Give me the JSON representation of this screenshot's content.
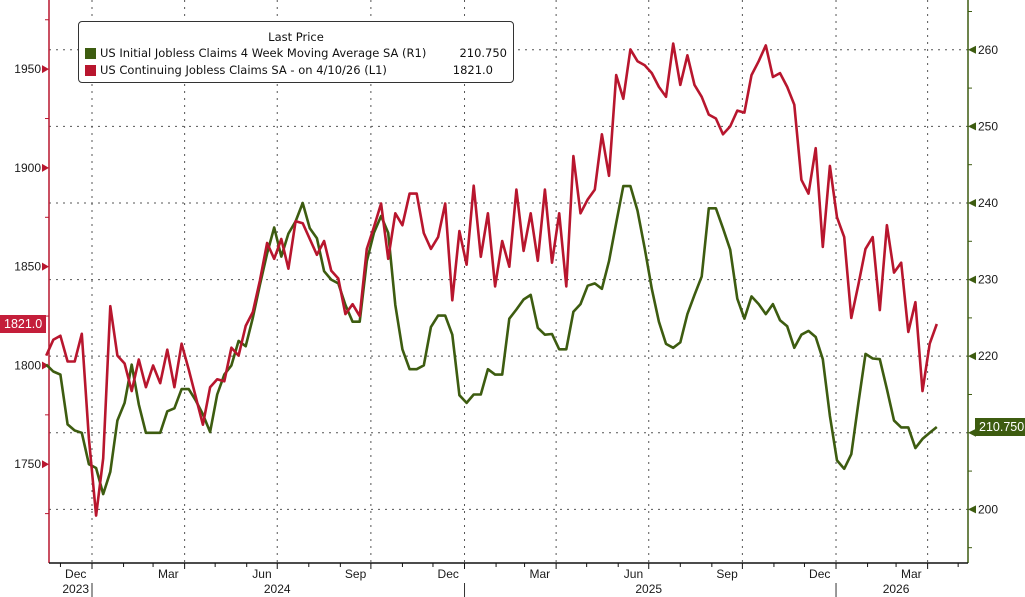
{
  "chart_data": {
    "type": "line",
    "legend": {
      "header": "Last Price",
      "placement": "top-left",
      "entries": [
        {
          "label": "US Initial Jobless Claims 4 Week Moving Average SA  (R1)",
          "value": "210.750",
          "color": "#3d5c10",
          "axis": "right"
        },
        {
          "label": "US Continuing Jobless Claims SA -  on 4/10/26  (L1)",
          "value": "1821.0",
          "color": "#b8162e",
          "axis": "left"
        }
      ]
    },
    "left_axis": {
      "ticks": [
        1750,
        1800,
        1850,
        1900,
        1950
      ],
      "ylim": [
        1700,
        1985
      ],
      "last_value_badge": "1821.0",
      "color": "#b8162e"
    },
    "right_axis": {
      "ticks": [
        200,
        210,
        220,
        230,
        240,
        250,
        260
      ],
      "ylim": [
        193,
        266.5
      ],
      "last_value_badge": "210.750",
      "color": "#3d5c10"
    },
    "grid": true,
    "x_axis": {
      "xlim": [
        "2023-11-15",
        "2026-05-08"
      ],
      "month_labels": [
        {
          "label": "Dec",
          "date": "2023-12-16"
        },
        {
          "label": "Mar",
          "date": "2024-03-16"
        },
        {
          "label": "Jun",
          "date": "2024-06-16"
        },
        {
          "label": "Sep",
          "date": "2024-09-16"
        },
        {
          "label": "Dec",
          "date": "2024-12-16"
        },
        {
          "label": "Mar",
          "date": "2025-03-16"
        },
        {
          "label": "Jun",
          "date": "2025-06-16"
        },
        {
          "label": "Sep",
          "date": "2025-09-16"
        },
        {
          "label": "Dec",
          "date": "2025-12-16"
        },
        {
          "label": "Mar",
          "date": "2026-03-16"
        }
      ],
      "year_labels": [
        {
          "label": "2023",
          "date": "2023-12-16"
        },
        {
          "label": "2024",
          "date": "2024-07-01"
        },
        {
          "label": "2025",
          "date": "2025-07-01"
        },
        {
          "label": "2026",
          "date": "2026-03-01"
        }
      ]
    },
    "dates": [
      "2023-11-17",
      "2023-11-24",
      "2023-12-01",
      "2023-12-08",
      "2023-12-15",
      "2023-12-22",
      "2023-12-29",
      "2024-01-05",
      "2024-01-12",
      "2024-01-19",
      "2024-01-26",
      "2024-02-02",
      "2024-02-09",
      "2024-02-16",
      "2024-02-23",
      "2024-03-01",
      "2024-03-08",
      "2024-03-15",
      "2024-03-22",
      "2024-03-29",
      "2024-04-05",
      "2024-04-12",
      "2024-04-19",
      "2024-04-26",
      "2024-05-03",
      "2024-05-10",
      "2024-05-17",
      "2024-05-24",
      "2024-05-31",
      "2024-06-07",
      "2024-06-14",
      "2024-06-21",
      "2024-06-28",
      "2024-07-05",
      "2024-07-12",
      "2024-07-19",
      "2024-07-26",
      "2024-08-02",
      "2024-08-09",
      "2024-08-16",
      "2024-08-23",
      "2024-08-30",
      "2024-09-06",
      "2024-09-13",
      "2024-09-20",
      "2024-09-27",
      "2024-10-04",
      "2024-10-11",
      "2024-10-18",
      "2024-10-25",
      "2024-11-01",
      "2024-11-08",
      "2024-11-15",
      "2024-11-22",
      "2024-11-29",
      "2024-12-06",
      "2024-12-13",
      "2024-12-20",
      "2024-12-27",
      "2025-01-03",
      "2025-01-10",
      "2025-01-17",
      "2025-01-24",
      "2025-01-31",
      "2025-02-07",
      "2025-02-14",
      "2025-02-21",
      "2025-02-28",
      "2025-03-07",
      "2025-03-14",
      "2025-03-21",
      "2025-03-28",
      "2025-04-04",
      "2025-04-11",
      "2025-04-18",
      "2025-04-25",
      "2025-05-02",
      "2025-05-09",
      "2025-05-16",
      "2025-05-23",
      "2025-05-30",
      "2025-06-06",
      "2025-06-13",
      "2025-06-20",
      "2025-06-27",
      "2025-07-04",
      "2025-07-11",
      "2025-07-18",
      "2025-07-25",
      "2025-08-01",
      "2025-08-08",
      "2025-08-15",
      "2025-08-22",
      "2025-08-29",
      "2025-09-05",
      "2025-09-12",
      "2025-09-19",
      "2025-09-26",
      "2025-10-03",
      "2025-10-10",
      "2025-10-17",
      "2025-10-24",
      "2025-10-31",
      "2025-11-07",
      "2025-11-14",
      "2025-11-21",
      "2025-11-28",
      "2025-12-05",
      "2025-12-12",
      "2025-12-19",
      "2025-12-26",
      "2026-01-02",
      "2026-01-09",
      "2026-01-16",
      "2026-01-23",
      "2026-01-30",
      "2026-02-06",
      "2026-02-13",
      "2026-02-20",
      "2026-02-27",
      "2026-03-06",
      "2026-03-13",
      "2026-03-20",
      "2026-03-27",
      "2026-04-03",
      "2026-04-10"
    ],
    "series": [
      {
        "name": "US Initial Jobless Claims 4 Week Moving Average SA",
        "axis": "right",
        "color": "#3d5c10",
        "values": [
          218.9,
          218.0,
          217.6,
          211.1,
          210.3,
          210.0,
          205.9,
          205.4,
          202.0,
          204.9,
          211.6,
          213.9,
          218.9,
          213.7,
          210.0,
          210.0,
          210.0,
          212.8,
          213.2,
          215.7,
          215.7,
          214.2,
          212.4,
          210.1,
          215.0,
          217.6,
          218.8,
          222.0,
          221.3,
          225.0,
          229.3,
          233.4,
          236.8,
          233.0,
          236.0,
          237.6,
          240.0,
          236.7,
          235.4,
          231.1,
          230.0,
          229.5,
          226.7,
          224.5,
          224.5,
          232.4,
          236.1,
          238.3,
          236.1,
          226.7,
          220.9,
          218.3,
          218.3,
          218.8,
          223.8,
          225.3,
          225.3,
          222.8,
          214.9,
          213.9,
          215.0,
          215.0,
          218.3,
          217.6,
          217.6,
          224.9,
          226.1,
          227.4,
          228.0,
          223.7,
          222.8,
          222.9,
          220.9,
          220.9,
          225.8,
          226.8,
          229.2,
          229.5,
          228.8,
          232.4,
          237.4,
          242.2,
          242.2,
          239.0,
          234.1,
          228.8,
          224.5,
          221.6,
          221.1,
          221.8,
          225.5,
          228.0,
          230.4,
          239.3,
          239.3,
          236.7,
          233.9,
          227.5,
          224.9,
          227.8,
          226.8,
          225.5,
          226.8,
          224.7,
          223.9,
          221.1,
          222.8,
          223.3,
          222.5,
          219.6,
          212.2,
          206.4,
          205.3,
          207.2,
          213.9,
          220.3,
          219.7,
          219.6,
          215.7,
          211.6,
          210.7,
          210.7,
          208.0,
          209.2,
          210.0,
          210.75
        ]
      },
      {
        "name": "US Continuing Jobless Claims SA",
        "axis": "left",
        "color": "#b8162e",
        "values": [
          1805,
          1813,
          1815,
          1802,
          1802,
          1816,
          1763,
          1724,
          1753,
          1830,
          1805,
          1801,
          1787,
          1803,
          1789,
          1800,
          1791,
          1808,
          1789,
          1811,
          1798,
          1784,
          1770,
          1789,
          1793,
          1792,
          1809,
          1805,
          1820,
          1827,
          1843,
          1862,
          1854,
          1864,
          1849,
          1873,
          1872,
          1864,
          1856,
          1863,
          1848,
          1844,
          1826,
          1831,
          1825,
          1859,
          1870,
          1882,
          1854,
          1877,
          1871,
          1887,
          1887,
          1867,
          1859,
          1865,
          1882,
          1833,
          1868,
          1851,
          1891,
          1855,
          1877,
          1840,
          1863,
          1850,
          1889,
          1858,
          1877,
          1853,
          1889,
          1852,
          1877,
          1840,
          1906,
          1877,
          1884,
          1889,
          1917,
          1896,
          1947,
          1935,
          1960,
          1954,
          1952,
          1948,
          1941,
          1936,
          1963,
          1942,
          1957,
          1942,
          1936,
          1927,
          1925,
          1917,
          1921,
          1929,
          1928,
          1947,
          1954,
          1962,
          1946,
          1948,
          1941,
          1932,
          1894,
          1887,
          1910,
          1860,
          1901,
          1875,
          1865,
          1824,
          1841,
          1859,
          1865,
          1828,
          1871,
          1847,
          1852,
          1817,
          1832,
          1787,
          1811,
          1821
        ]
      }
    ]
  }
}
